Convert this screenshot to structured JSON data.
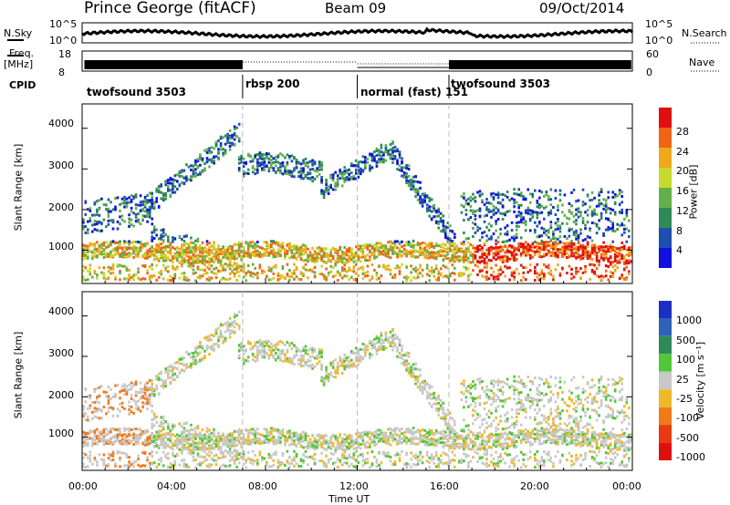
{
  "header": {
    "station": "Prince George (fitACF)",
    "beam": "Beam 09",
    "date": "09/Oct/2014"
  },
  "summary": {
    "nsky_label": "N.Sky",
    "freq_label_line1": "Freq.",
    "freq_label_line2": "[MHz]",
    "cpid_label": "CPID",
    "nsearch_label": "N.Search",
    "nave_label": "Nave",
    "nsky_ticks": [
      "10^5",
      "10^0"
    ],
    "nsearch_ticks": [
      "10^5",
      "10^0"
    ],
    "freq_ticks": [
      "18",
      "8"
    ],
    "nave_ticks": [
      "60",
      "0"
    ]
  },
  "chart_data": [
    {
      "type": "heatmap",
      "name": "Power",
      "ylabel": "Slant Range [km]",
      "xlabel": "Time UT",
      "ylim": [
        180,
        4600
      ],
      "xlim": [
        0,
        24
      ],
      "yticks": [
        "1000",
        "2000",
        "3000",
        "4000"
      ],
      "xticks": [
        "00:00",
        "04:00",
        "08:00",
        "12:00",
        "16:00",
        "20:00",
        "00:00"
      ],
      "colorbar_label": "Power [dB]",
      "colorbar_ticks": [
        "4",
        "8",
        "12",
        "16",
        "20",
        "24",
        "28"
      ],
      "colorbar_colors": [
        "#1010e0",
        "#1d4fae",
        "#2e8b57",
        "#63b04a",
        "#c9d82c",
        "#f0a81c",
        "#f06418",
        "#e01010"
      ],
      "cpid_segments": [
        {
          "label": "twofsound 3503",
          "start": 0,
          "end": 7
        },
        {
          "label": "rbsp 200",
          "start": 7,
          "end": 12
        },
        {
          "label": "normal (fast) 151",
          "start": 12,
          "end": 16
        },
        {
          "label": "twofsound 3503",
          "start": 16,
          "end": 24
        }
      ],
      "mode_changes": [
        7,
        12,
        16
      ]
    },
    {
      "type": "heatmap",
      "name": "Velocity",
      "ylabel": "Slant Range [km]",
      "xlabel": "Time UT",
      "ylim": [
        180,
        4600
      ],
      "xlim": [
        0,
        24
      ],
      "yticks": [
        "1000",
        "2000",
        "3000",
        "4000"
      ],
      "xticks": [
        "00:00",
        "04:00",
        "08:00",
        "12:00",
        "16:00",
        "20:00",
        "00:00"
      ],
      "colorbar_label": "Velocity [m s⁻¹]",
      "colorbar_ticks": [
        "1000",
        "500",
        "100",
        "25",
        "-25",
        "-100",
        "-500",
        "-1000"
      ],
      "colorbar_colors": [
        "#1c2fc4",
        "#2e63b8",
        "#2e8b57",
        "#52c63a",
        "#c8c8c8",
        "#f0b828",
        "#f07a18",
        "#e83a10",
        "#e01010"
      ]
    }
  ],
  "axis": {
    "time_label": "Time UT"
  }
}
